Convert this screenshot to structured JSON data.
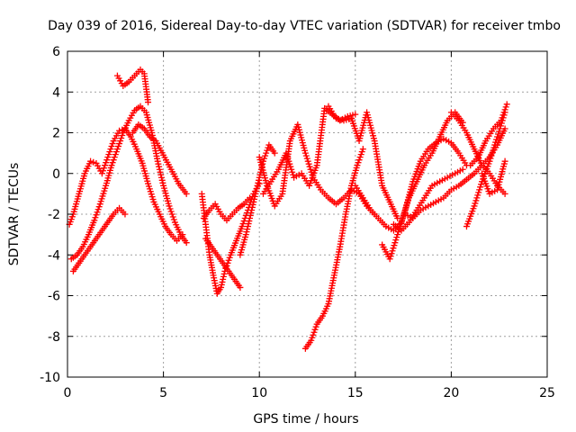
{
  "chart_data": {
    "type": "scatter",
    "title": "Day 039 of 2016, Sidereal Day-to-day VTEC variation (SDTVAR) for receiver tmbo",
    "xlabel": "GPS time / hours",
    "ylabel": "SDTVAR / TECUs",
    "xlim": [
      0,
      25
    ],
    "ylim": [
      -10,
      6
    ],
    "xticks": [
      0,
      5,
      10,
      15,
      20,
      25
    ],
    "yticks": [
      -10,
      -8,
      -6,
      -4,
      -2,
      0,
      2,
      4,
      6
    ],
    "grid": true,
    "marker": "+",
    "color": "#ff0000",
    "series": [
      {
        "x": [
          0.1,
          0.3,
          0.6,
          0.9,
          1.2,
          1.5,
          1.8,
          2.1,
          2.4,
          2.7,
          3.0,
          3.3,
          3.6,
          3.9,
          4.2,
          4.5,
          4.8,
          5.1,
          5.4,
          5.7,
          6.0
        ],
        "y": [
          -2.5,
          -2.0,
          -1.0,
          0.0,
          0.6,
          0.5,
          0.0,
          0.8,
          1.6,
          2.1,
          2.2,
          1.8,
          1.2,
          0.5,
          -0.5,
          -1.4,
          -2.0,
          -2.6,
          -3.0,
          -3.3,
          -3.0
        ]
      },
      {
        "x": [
          0.2,
          0.5,
          0.8,
          1.1,
          1.4,
          1.7,
          2.0,
          2.3,
          2.6,
          2.9,
          3.2,
          3.5,
          3.8,
          4.1,
          4.4,
          4.7,
          5.0,
          5.3,
          5.6,
          5.9,
          6.2
        ],
        "y": [
          -4.2,
          -4.0,
          -3.6,
          -3.0,
          -2.3,
          -1.5,
          -0.6,
          0.4,
          1.2,
          2.0,
          2.6,
          3.1,
          3.3,
          3.0,
          2.0,
          0.6,
          -0.6,
          -1.6,
          -2.4,
          -3.0,
          -3.4
        ]
      },
      {
        "x": [
          0.3,
          0.6,
          0.9,
          1.2,
          1.5,
          1.8,
          2.1,
          2.4,
          2.7,
          3.0
        ],
        "y": [
          -4.8,
          -4.4,
          -4.0,
          -3.6,
          -3.2,
          -2.8,
          -2.4,
          -2.0,
          -1.7,
          -2.0
        ]
      },
      {
        "x": [
          2.6,
          2.9,
          3.2,
          3.5,
          3.8,
          4.0,
          4.2
        ],
        "y": [
          4.8,
          4.3,
          4.5,
          4.8,
          5.1,
          4.9,
          3.5
        ]
      },
      {
        "x": [
          3.4,
          3.7,
          4.0,
          4.3,
          4.6,
          5.0,
          5.4,
          5.8,
          6.2
        ],
        "y": [
          2.0,
          2.4,
          2.2,
          1.8,
          1.6,
          0.9,
          0.2,
          -0.5,
          -1.0
        ]
      },
      {
        "x": [
          7.0,
          7.2,
          7.4,
          7.6,
          7.8,
          8.0,
          8.2,
          8.5,
          8.8,
          9.1,
          9.4,
          9.7,
          10.0
        ],
        "y": [
          -1.0,
          -2.5,
          -4.0,
          -5.0,
          -5.9,
          -5.6,
          -4.8,
          -4.0,
          -3.3,
          -2.6,
          -1.8,
          -1.0,
          -0.5
        ]
      },
      {
        "x": [
          7.1,
          7.4,
          7.7,
          8.0,
          8.3,
          8.6,
          8.9,
          9.2,
          9.5
        ],
        "y": [
          -2.2,
          -1.8,
          -1.5,
          -2.0,
          -2.3,
          -2.0,
          -1.7,
          -1.5,
          -1.2
        ]
      },
      {
        "x": [
          7.2,
          7.5,
          7.8,
          8.1,
          8.4,
          8.7,
          9.0
        ],
        "y": [
          -3.2,
          -3.6,
          -4.0,
          -4.4,
          -4.8,
          -5.2,
          -5.6
        ]
      },
      {
        "x": [
          9.0,
          9.3,
          9.6,
          9.9,
          10.2,
          10.5,
          10.8
        ],
        "y": [
          -4.0,
          -3.0,
          -1.8,
          -0.6,
          0.6,
          1.4,
          1.0
        ]
      },
      {
        "x": [
          10.0,
          10.4,
          10.8,
          11.2,
          11.6,
          12.0,
          12.4,
          12.8,
          13.2,
          13.6,
          14.0,
          14.4,
          14.8,
          15.2,
          15.6,
          16.0
        ],
        "y": [
          0.8,
          -0.6,
          -1.6,
          -1.0,
          1.6,
          2.4,
          1.0,
          -0.2,
          -0.8,
          -1.2,
          -1.5,
          -1.2,
          -0.8,
          -1.0,
          -1.6,
          -2.0
        ]
      },
      {
        "x": [
          10.2,
          10.6,
          11.0,
          11.4,
          11.8,
          12.2,
          12.6,
          13.0,
          13.4,
          13.8,
          14.2,
          14.6,
          15.0
        ],
        "y": [
          -1.0,
          -0.4,
          0.2,
          1.0,
          -0.2,
          0.0,
          -0.6,
          0.4,
          3.2,
          2.9,
          2.6,
          2.8,
          2.9
        ]
      },
      {
        "x": [
          12.4,
          12.7,
          13.0,
          13.3,
          13.6,
          13.9,
          14.2,
          14.5,
          14.8,
          15.1,
          15.4
        ],
        "y": [
          -8.6,
          -8.2,
          -7.4,
          -7.0,
          -6.4,
          -5.0,
          -3.6,
          -2.0,
          -0.6,
          0.4,
          1.2
        ]
      },
      {
        "x": [
          13.6,
          14.0,
          14.4,
          14.8,
          15.2,
          15.6,
          16.0,
          16.4,
          16.8,
          17.2
        ],
        "y": [
          3.3,
          2.7,
          2.6,
          2.7,
          1.6,
          3.0,
          1.6,
          -0.6,
          -1.4,
          -2.2
        ]
      },
      {
        "x": [
          15.0,
          15.4,
          15.8,
          16.2,
          16.6,
          17.0,
          17.4,
          17.8,
          18.2,
          18.6,
          19.0,
          19.4,
          19.8,
          20.2,
          20.6
        ],
        "y": [
          -0.6,
          -1.2,
          -1.8,
          -2.2,
          -2.6,
          -2.8,
          -2.4,
          -1.2,
          -0.4,
          0.4,
          1.0,
          1.8,
          2.6,
          3.0,
          2.5
        ]
      },
      {
        "x": [
          16.4,
          16.8,
          17.2,
          17.6,
          18.0,
          18.4,
          18.8,
          19.2,
          19.6,
          20.0,
          20.4,
          20.8
        ],
        "y": [
          -3.5,
          -4.2,
          -3.0,
          -1.8,
          -0.4,
          0.6,
          1.2,
          1.5,
          1.7,
          1.5,
          1.0,
          0.4
        ]
      },
      {
        "x": [
          17.0,
          17.4,
          17.8,
          18.2,
          18.6,
          19.0,
          19.4,
          19.8,
          20.2,
          20.6
        ],
        "y": [
          -2.5,
          -2.8,
          -2.4,
          -1.8,
          -1.2,
          -0.6,
          -0.4,
          -0.2,
          0.0,
          0.2
        ]
      },
      {
        "x": [
          17.6,
          18.0,
          18.4,
          18.8,
          19.2,
          19.6,
          20.0,
          20.4,
          20.8,
          21.2,
          21.6,
          22.0,
          22.4,
          22.8
        ],
        "y": [
          -2.0,
          -2.2,
          -1.8,
          -1.6,
          -1.4,
          -1.2,
          -0.8,
          -0.6,
          -0.3,
          0.0,
          0.4,
          0.8,
          1.4,
          2.2
        ]
      },
      {
        "x": [
          20.8,
          21.2,
          21.6,
          22.0,
          22.4,
          22.8
        ],
        "y": [
          -2.6,
          -1.6,
          -0.4,
          0.6,
          1.8,
          3.0
        ]
      },
      {
        "x": [
          21.0,
          21.4,
          21.8,
          22.2,
          22.6,
          22.9
        ],
        "y": [
          0.4,
          0.8,
          1.6,
          2.2,
          2.6,
          3.4
        ]
      },
      {
        "x": [
          20.0,
          20.4,
          20.8,
          21.2,
          21.6,
          22.0,
          22.4,
          22.8
        ],
        "y": [
          3.0,
          2.6,
          2.0,
          1.2,
          0.4,
          0.0,
          -0.6,
          -1.0
        ]
      },
      {
        "x": [
          21.6,
          22.0,
          22.4,
          22.8
        ],
        "y": [
          0.0,
          -1.0,
          -0.8,
          0.6
        ]
      }
    ]
  }
}
